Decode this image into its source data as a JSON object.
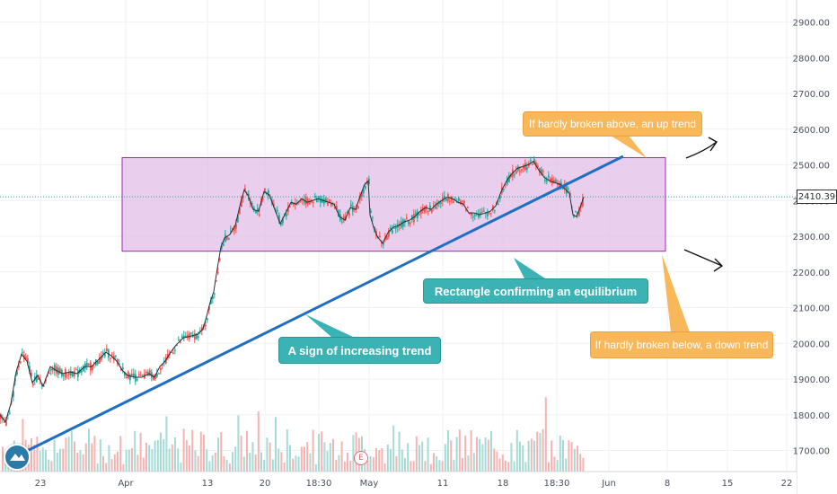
{
  "chart_data": {
    "type": "candlestick",
    "y_ticks": [
      "1700.00",
      "1800.00",
      "1900.00",
      "2000.00",
      "2100.00",
      "2200.00",
      "2300.00",
      "2400.00",
      "2500.00",
      "2600.00",
      "2700.00",
      "2800.00",
      "2900.00"
    ],
    "ylim": [
      1650,
      2970
    ],
    "x_ticks": [
      "23",
      "Apr",
      "13",
      "20",
      "18:30",
      "May",
      "11",
      "18",
      "18:30",
      "Jun",
      "8",
      "15",
      "22"
    ],
    "current_price": "2410.39",
    "price_path": [
      [
        0,
        1800
      ],
      [
        6,
        1780
      ],
      [
        12,
        1830
      ],
      [
        18,
        1920
      ],
      [
        24,
        1970
      ],
      [
        30,
        1950
      ],
      [
        36,
        1890
      ],
      [
        42,
        1910
      ],
      [
        48,
        1880
      ],
      [
        56,
        1935
      ],
      [
        62,
        1925
      ],
      [
        70,
        1915
      ],
      [
        78,
        1920
      ],
      [
        86,
        1915
      ],
      [
        94,
        1935
      ],
      [
        102,
        1935
      ],
      [
        110,
        1955
      ],
      [
        118,
        1975
      ],
      [
        124,
        1965
      ],
      [
        130,
        1950
      ],
      [
        136,
        1925
      ],
      [
        142,
        1910
      ],
      [
        150,
        1905
      ],
      [
        158,
        1905
      ],
      [
        166,
        1915
      ],
      [
        172,
        1905
      ],
      [
        178,
        1935
      ],
      [
        184,
        1950
      ],
      [
        190,
        1975
      ],
      [
        196,
        1995
      ],
      [
        204,
        2015
      ],
      [
        212,
        2020
      ],
      [
        220,
        2025
      ],
      [
        226,
        2040
      ],
      [
        230,
        2075
      ],
      [
        234,
        2115
      ],
      [
        238,
        2145
      ],
      [
        242,
        2210
      ],
      [
        246,
        2270
      ],
      [
        250,
        2295
      ],
      [
        256,
        2305
      ],
      [
        262,
        2330
      ],
      [
        268,
        2395
      ],
      [
        272,
        2430
      ],
      [
        276,
        2415
      ],
      [
        282,
        2375
      ],
      [
        288,
        2370
      ],
      [
        294,
        2425
      ],
      [
        300,
        2415
      ],
      [
        306,
        2375
      ],
      [
        312,
        2335
      ],
      [
        318,
        2365
      ],
      [
        324,
        2395
      ],
      [
        330,
        2390
      ],
      [
        336,
        2405
      ],
      [
        342,
        2395
      ],
      [
        348,
        2400
      ],
      [
        354,
        2405
      ],
      [
        360,
        2400
      ],
      [
        366,
        2395
      ],
      [
        372,
        2390
      ],
      [
        378,
        2355
      ],
      [
        384,
        2345
      ],
      [
        390,
        2380
      ],
      [
        396,
        2375
      ],
      [
        400,
        2405
      ],
      [
        406,
        2445
      ],
      [
        410,
        2455
      ],
      [
        412,
        2360
      ],
      [
        416,
        2325
      ],
      [
        420,
        2300
      ],
      [
        426,
        2280
      ],
      [
        432,
        2310
      ],
      [
        438,
        2325
      ],
      [
        444,
        2330
      ],
      [
        450,
        2340
      ],
      [
        456,
        2345
      ],
      [
        462,
        2355
      ],
      [
        468,
        2370
      ],
      [
        474,
        2380
      ],
      [
        480,
        2375
      ],
      [
        486,
        2390
      ],
      [
        492,
        2400
      ],
      [
        498,
        2410
      ],
      [
        504,
        2405
      ],
      [
        510,
        2395
      ],
      [
        516,
        2390
      ],
      [
        522,
        2365
      ],
      [
        528,
        2365
      ],
      [
        534,
        2360
      ],
      [
        540,
        2365
      ],
      [
        546,
        2370
      ],
      [
        552,
        2385
      ],
      [
        558,
        2425
      ],
      [
        564,
        2455
      ],
      [
        570,
        2475
      ],
      [
        576,
        2490
      ],
      [
        582,
        2495
      ],
      [
        588,
        2500
      ],
      [
        594,
        2510
      ],
      [
        600,
        2485
      ],
      [
        606,
        2465
      ],
      [
        612,
        2455
      ],
      [
        618,
        2450
      ],
      [
        624,
        2445
      ],
      [
        630,
        2430
      ],
      [
        634,
        2420
      ],
      [
        638,
        2360
      ],
      [
        642,
        2355
      ],
      [
        646,
        2380
      ],
      [
        650,
        2410
      ]
    ],
    "rectangle": {
      "top_price": 2520,
      "bottom_price": 2258
    },
    "annotations": {
      "up": "If hardly broken above, an up trend",
      "equilibrium": "Rectangle confirming an equilibrium",
      "trend": "A sign of increasing trend",
      "down": "If hardly broken below, a down trend"
    },
    "event_marker": "E",
    "colors": {
      "up": "#26a69a",
      "down": "#ef5350",
      "rect_fill": "#e1bee7",
      "rect_border": "#9c27b0",
      "trendline": "#1e6fc4",
      "teal": "#3bb3b4",
      "orange": "#f8b85a"
    }
  }
}
